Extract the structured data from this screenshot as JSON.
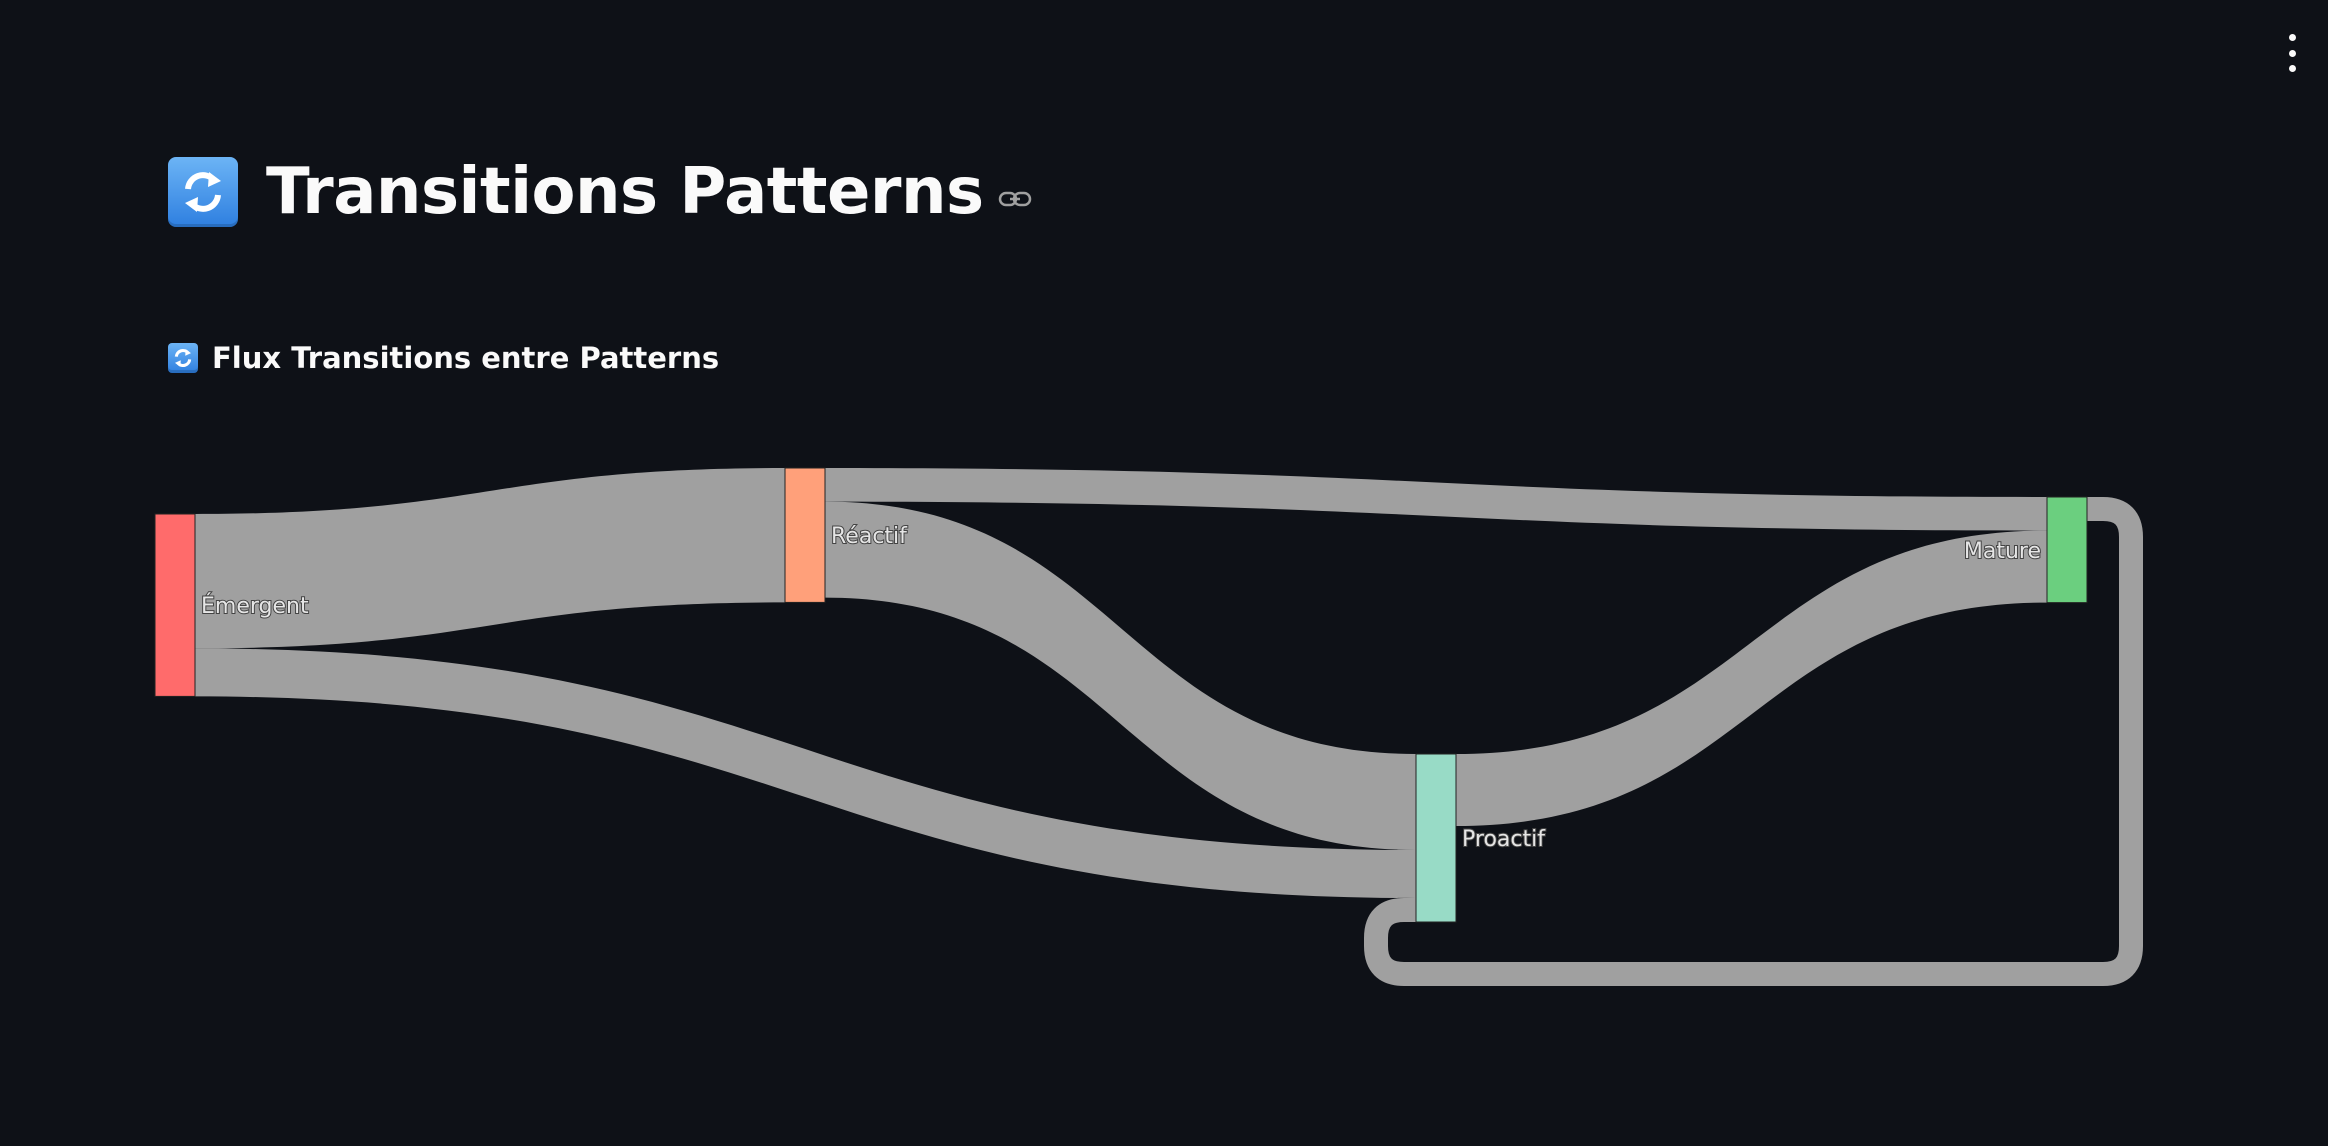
{
  "header": {
    "title": "Transitions Patterns",
    "title_icon": "arrows-cycle-icon",
    "anchor_icon": "link-icon",
    "menu_icon": "vertical-dots-icon"
  },
  "section": {
    "title": "Flux Transitions entre Patterns",
    "icon": "arrows-cycle-icon"
  },
  "chart_data": {
    "type": "sankey",
    "nodes": [
      {
        "id": "emergent",
        "label": "Émergent",
        "color": "#ff6b6b"
      },
      {
        "id": "reactif",
        "label": "Réactif",
        "color": "#ffa07a"
      },
      {
        "id": "proactif",
        "label": "Proactif",
        "color": "#98dbc6"
      },
      {
        "id": "mature",
        "label": "Mature",
        "color": "#6bcf7f"
      }
    ],
    "links": [
      {
        "source": "emergent",
        "target": "reactif",
        "value": 14
      },
      {
        "source": "emergent",
        "target": "proactif",
        "value": 5
      },
      {
        "source": "reactif",
        "target": "mature",
        "value": 3.5
      },
      {
        "source": "reactif",
        "target": "proactif",
        "value": 10
      },
      {
        "source": "proactif",
        "target": "mature",
        "value": 7.5
      },
      {
        "source": "mature",
        "target": "proactif",
        "value": 2.5
      }
    ],
    "link_color": "#a0a0a0"
  }
}
